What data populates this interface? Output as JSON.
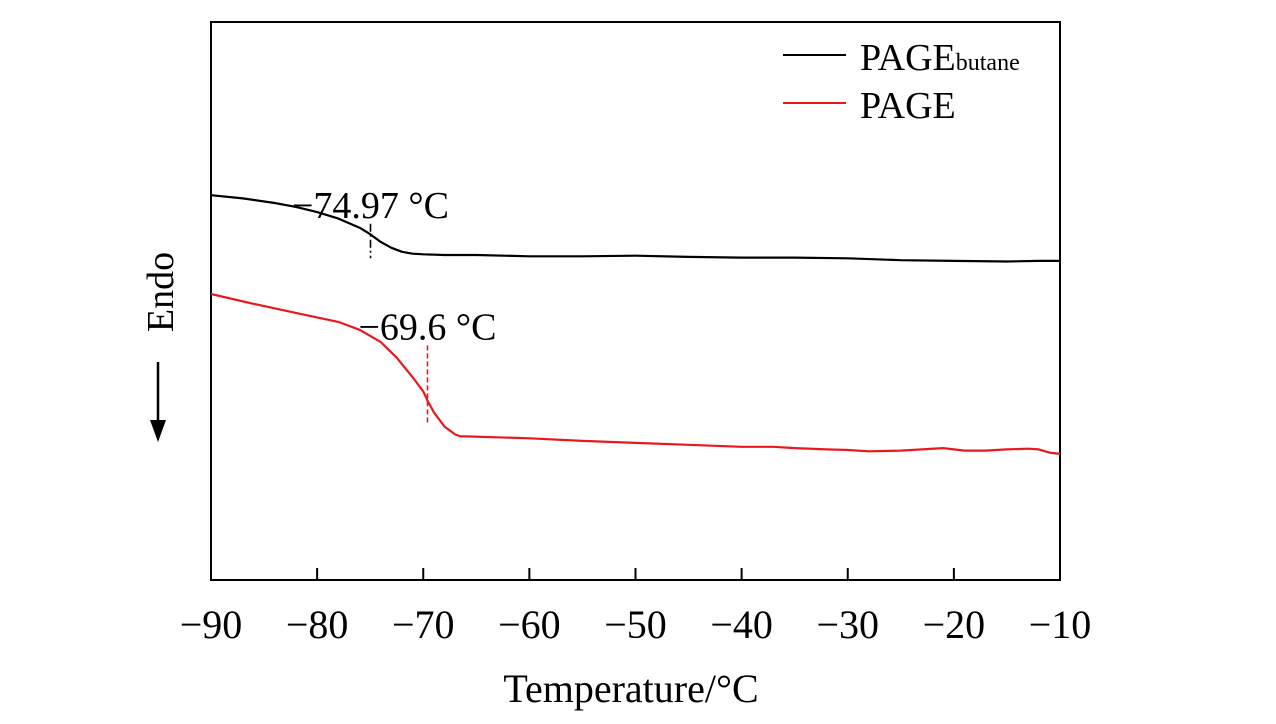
{
  "chart_data": {
    "type": "line",
    "title": "",
    "xlabel": "Temperature/°C",
    "ylabel": "Endo",
    "ylabel_arrow": "down",
    "xlim": [
      -90,
      -10
    ],
    "x_ticks": [
      -90,
      -80,
      -70,
      -60,
      -50,
      -40,
      -30,
      -20,
      -10
    ],
    "x_tick_labels": [
      "−90",
      "−80",
      "−70",
      "−60",
      "−50",
      "−40",
      "−30",
      "−20",
      "−10"
    ],
    "y_ticks_shown": false,
    "grid": false,
    "legend": {
      "placement": "top-right",
      "entries": [
        {
          "base": "PAGE",
          "subscript": "butane",
          "color": "#000000"
        },
        {
          "base": "PAGE",
          "subscript": "",
          "color": "#e8191c"
        }
      ]
    },
    "series": [
      {
        "name": "PAGE_butane",
        "color": "#000000",
        "x": [
          -90,
          -87,
          -84,
          -82,
          -80,
          -78,
          -76,
          -75,
          -74,
          -73,
          -72,
          -71,
          -70,
          -68,
          -65,
          -60,
          -55,
          -50,
          -45,
          -40,
          -35,
          -30,
          -25,
          -20,
          -15,
          -12,
          -10
        ],
        "y": [
          1.52,
          1.47,
          1.4,
          1.34,
          1.26,
          1.16,
          1.02,
          0.92,
          0.8,
          0.71,
          0.65,
          0.62,
          0.61,
          0.6,
          0.6,
          0.58,
          0.58,
          0.59,
          0.57,
          0.56,
          0.56,
          0.55,
          0.52,
          0.51,
          0.5,
          0.51,
          0.51
        ]
      },
      {
        "name": "PAGE",
        "color": "#e8191c",
        "x": [
          -90,
          -86,
          -82,
          -78,
          -76,
          -74,
          -72.5,
          -71,
          -70,
          -69.6,
          -69,
          -68,
          -67,
          -66.5,
          -66,
          -60,
          -55,
          -50,
          -45,
          -40,
          -37,
          -35,
          -32,
          -30,
          -28,
          -25,
          -23,
          -21,
          -19,
          -17,
          -15,
          -13,
          -12,
          -11,
          -10
        ],
        "y": [
          0.0,
          -0.15,
          -0.29,
          -0.43,
          -0.55,
          -0.74,
          -0.98,
          -1.28,
          -1.5,
          -1.64,
          -1.82,
          -2.04,
          -2.16,
          -2.19,
          -2.19,
          -2.22,
          -2.26,
          -2.29,
          -2.32,
          -2.35,
          -2.35,
          -2.37,
          -2.39,
          -2.4,
          -2.42,
          -2.41,
          -2.39,
          -2.37,
          -2.41,
          -2.41,
          -2.39,
          -2.38,
          -2.39,
          -2.44,
          -2.46
        ]
      }
    ],
    "annotations": [
      {
        "text": "−74.97 °C",
        "x": -74.97,
        "y_top": 1.08,
        "y_bottom": 0.55,
        "line": "dash-dot",
        "color": "#000000"
      },
      {
        "text": "−69.6 °C",
        "x": -69.6,
        "y_top": -0.79,
        "y_bottom": -1.98,
        "line": "dashed",
        "color": "#e8191c"
      }
    ]
  }
}
